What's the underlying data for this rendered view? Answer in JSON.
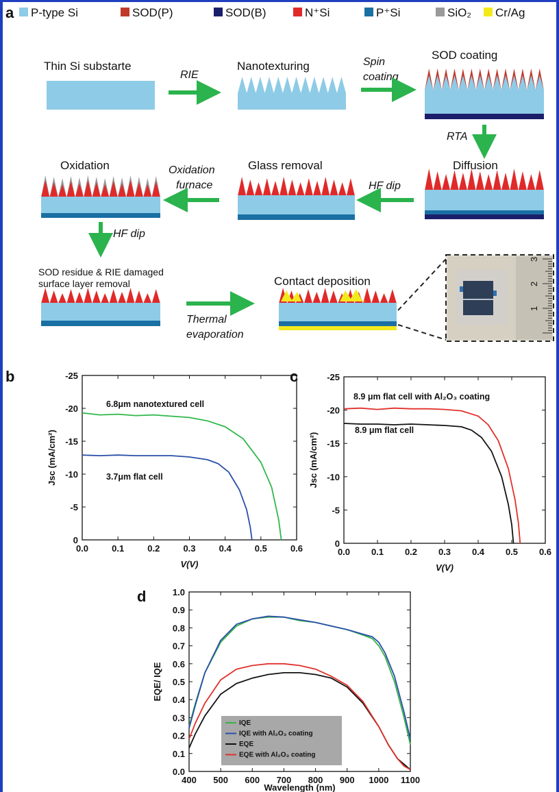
{
  "figure": {
    "panel_labels": [
      "a",
      "b",
      "c",
      "d"
    ]
  },
  "legend_a": [
    {
      "label": "P-type Si",
      "color": "#8ecbe6"
    },
    {
      "label": "SOD(P)",
      "color": "#c0392b"
    },
    {
      "label": "SOD(B)",
      "color": "#1b1f6b"
    },
    {
      "label": "N⁺Si",
      "color": "#e02a2a"
    },
    {
      "label": "P⁺Si",
      "color": "#1a6fa3"
    },
    {
      "label": "SiO₂",
      "color": "#9a9a9a"
    },
    {
      "label": "Cr/Ag",
      "color": "#f2ea1c"
    }
  ],
  "process": {
    "steps": {
      "thin_si": "Thin Si substarte",
      "nanotexturing": "Nanotexturing",
      "sod_coating": "SOD coating",
      "diffusion": "Diffusion",
      "glass_removal": "Glass removal",
      "oxidation": "Oxidation",
      "sod_residue_1": "SOD residue & RIE damaged",
      "sod_residue_2": "surface layer removal",
      "contact_deposition": "Contact deposition"
    },
    "arrows": {
      "rie": "RIE",
      "spin_1": "Spin",
      "spin_2": "coating",
      "rta": "RTA",
      "hf_dip_1": "HF dip",
      "oxidation_1": "Oxidation",
      "oxidation_2": "furnace",
      "hf_dip_2": "HF dip",
      "thermal_1": "Thermal",
      "thermal_2": "evaporation"
    },
    "ruler_ticks": [
      "1",
      "2",
      "3"
    ]
  },
  "chart_data": [
    {
      "panel": "b",
      "type": "line",
      "xlabel": "V(V)",
      "ylabel": "Jsc (mA/cm²)",
      "xlim": [
        0,
        0.6
      ],
      "ylim": [
        0,
        -25
      ],
      "xticks": [
        "0.0",
        "0.1",
        "0.2",
        "0.3",
        "0.4",
        "0.5",
        "0.6"
      ],
      "yticks": [
        "0",
        "-5",
        "-10",
        "-15",
        "-20",
        "-25"
      ],
      "series": [
        {
          "name": "6.8μm nanotextured cell",
          "color": "#2fb84a",
          "x": [
            0,
            0.05,
            0.1,
            0.15,
            0.2,
            0.25,
            0.3,
            0.35,
            0.4,
            0.45,
            0.5,
            0.53,
            0.55,
            0.557
          ],
          "y": [
            -19.3,
            -19.0,
            -19.1,
            -18.9,
            -19.0,
            -18.8,
            -18.6,
            -18.1,
            -17.2,
            -15.4,
            -11.8,
            -8.0,
            -3.0,
            0
          ]
        },
        {
          "name": "3.7μm flat cell",
          "color": "#2a4fa8",
          "x": [
            0,
            0.05,
            0.1,
            0.15,
            0.2,
            0.25,
            0.3,
            0.35,
            0.38,
            0.41,
            0.44,
            0.46,
            0.47,
            0.475
          ],
          "y": [
            -12.9,
            -12.8,
            -12.9,
            -12.8,
            -12.8,
            -12.8,
            -12.6,
            -12.2,
            -11.6,
            -10.3,
            -7.6,
            -4.6,
            -2.0,
            0
          ]
        }
      ]
    },
    {
      "panel": "c",
      "type": "line",
      "xlabel": "V(V)",
      "ylabel": "Jsc (mA/cm²)",
      "xlim": [
        0,
        0.6
      ],
      "ylim": [
        0,
        -25
      ],
      "xticks": [
        "0.0",
        "0.1",
        "0.2",
        "0.3",
        "0.4",
        "0.5",
        "0.6"
      ],
      "yticks": [
        "0",
        "-5",
        "-10",
        "-15",
        "-20",
        "-25"
      ],
      "series": [
        {
          "name": "8.9 μm flat cell with Al₂O₃ coating",
          "color": "#e0302a",
          "x": [
            0,
            0.05,
            0.1,
            0.15,
            0.2,
            0.25,
            0.3,
            0.35,
            0.4,
            0.43,
            0.46,
            0.49,
            0.51,
            0.52,
            0.525
          ],
          "y": [
            -20.2,
            -20.3,
            -20.1,
            -20.3,
            -20.2,
            -20.2,
            -20.1,
            -19.9,
            -19.1,
            -17.8,
            -15.4,
            -11.2,
            -6.5,
            -3.0,
            0
          ]
        },
        {
          "name": "8.9 μm flat cell",
          "color": "#111111",
          "x": [
            0,
            0.05,
            0.1,
            0.15,
            0.2,
            0.25,
            0.3,
            0.35,
            0.38,
            0.41,
            0.44,
            0.47,
            0.49,
            0.5,
            0.505
          ],
          "y": [
            -18.0,
            -17.9,
            -17.9,
            -17.8,
            -17.9,
            -17.8,
            -17.7,
            -17.5,
            -17.0,
            -15.9,
            -13.8,
            -10.0,
            -5.8,
            -2.8,
            0
          ]
        }
      ]
    },
    {
      "panel": "d",
      "type": "line",
      "xlabel": "Wavelength (nm)",
      "ylabel": "EQE/ IQE",
      "xlim": [
        400,
        1100
      ],
      "ylim": [
        0,
        1.0
      ],
      "xticks": [
        "400",
        "500",
        "600",
        "700",
        "800",
        "900",
        "1000",
        "1100"
      ],
      "yticks": [
        "0.0",
        "0.1",
        "0.2",
        "0.3",
        "0.4",
        "0.5",
        "0.6",
        "0.7",
        "0.8",
        "0.9",
        "1.0"
      ],
      "legend": "bottom-left",
      "series": [
        {
          "name": "IQE",
          "color": "#37b34a",
          "x": [
            400,
            420,
            450,
            500,
            550,
            600,
            650,
            700,
            750,
            800,
            850,
            900,
            950,
            980,
            1000,
            1020,
            1050,
            1080,
            1100
          ],
          "y": [
            0.25,
            0.38,
            0.55,
            0.72,
            0.81,
            0.85,
            0.86,
            0.86,
            0.84,
            0.83,
            0.81,
            0.79,
            0.76,
            0.74,
            0.7,
            0.64,
            0.5,
            0.3,
            0.15
          ]
        },
        {
          "name": "IQE with Al₂O₃ coating",
          "color": "#2a4fa8",
          "x": [
            400,
            420,
            450,
            500,
            550,
            600,
            650,
            700,
            750,
            800,
            850,
            900,
            950,
            980,
            1000,
            1020,
            1050,
            1080,
            1100
          ],
          "y": [
            0.24,
            0.37,
            0.55,
            0.73,
            0.82,
            0.85,
            0.865,
            0.86,
            0.845,
            0.83,
            0.81,
            0.79,
            0.765,
            0.75,
            0.72,
            0.66,
            0.53,
            0.33,
            0.18
          ]
        },
        {
          "name": "EQE",
          "color": "#111111",
          "x": [
            400,
            420,
            450,
            500,
            550,
            600,
            650,
            700,
            750,
            800,
            850,
            900,
            950,
            1000,
            1030,
            1060,
            1080,
            1100
          ],
          "y": [
            0.13,
            0.21,
            0.31,
            0.43,
            0.49,
            0.52,
            0.54,
            0.55,
            0.55,
            0.54,
            0.52,
            0.47,
            0.38,
            0.25,
            0.15,
            0.07,
            0.04,
            0.01
          ]
        },
        {
          "name": "EQE with Al₂O₃ coating",
          "color": "#e0302a",
          "x": [
            400,
            420,
            450,
            500,
            550,
            600,
            650,
            700,
            750,
            800,
            850,
            900,
            950,
            1000,
            1030,
            1060,
            1080,
            1100
          ],
          "y": [
            0.18,
            0.27,
            0.38,
            0.51,
            0.57,
            0.59,
            0.6,
            0.6,
            0.59,
            0.57,
            0.53,
            0.48,
            0.39,
            0.25,
            0.15,
            0.07,
            0.03,
            0.01
          ]
        }
      ]
    }
  ]
}
